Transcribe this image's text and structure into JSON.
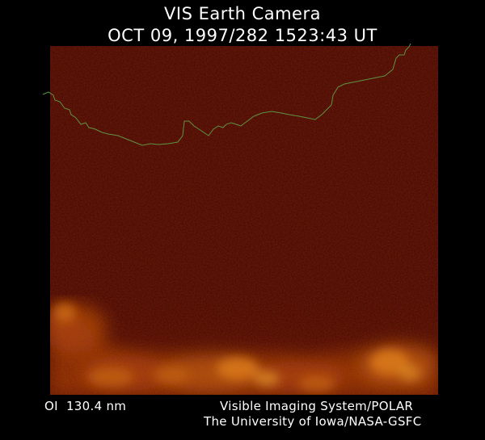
{
  "header": {
    "title": "VIS Earth Camera",
    "timestamp": "OCT 09, 1997/282 1523:43 UT"
  },
  "image": {
    "subject": "auroral-oval-image",
    "background_color": "#4a0703",
    "emission_colors": [
      "#7a1a05",
      "#b04408",
      "#e07a10",
      "#ffb030"
    ],
    "limb_line_color": "#5fa14a"
  },
  "footer": {
    "filter": "OI  130.4 nm",
    "instrument": "Visible Imaging System/POLAR",
    "institution": "The University of Iowa/NASA-GSFC"
  }
}
